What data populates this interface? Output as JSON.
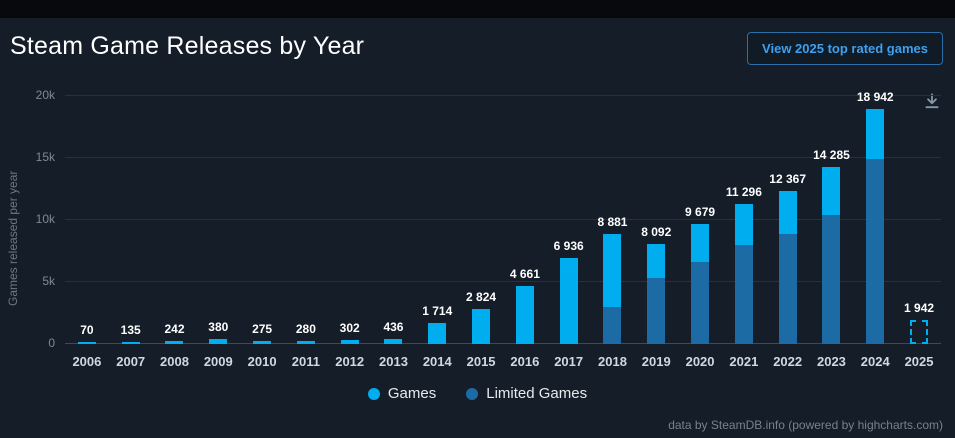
{
  "header": {
    "title": "Steam Game Releases by Year",
    "button_label": "View 2025 top rated games"
  },
  "chart_data": {
    "type": "bar",
    "stacked": true,
    "title": "Steam Game Releases by Year",
    "ylabel": "Games released per year",
    "ylim": [
      0,
      20000
    ],
    "yticks": [
      "0",
      "5k",
      "10k",
      "15k",
      "20k"
    ],
    "grid": true,
    "legend_position": "bottom",
    "categories": [
      "2006",
      "2007",
      "2008",
      "2009",
      "2010",
      "2011",
      "2012",
      "2013",
      "2014",
      "2015",
      "2016",
      "2017",
      "2018",
      "2019",
      "2020",
      "2021",
      "2022",
      "2023",
      "2024",
      "2025"
    ],
    "totals": [
      70,
      135,
      242,
      380,
      275,
      280,
      302,
      436,
      1714,
      2824,
      4661,
      6936,
      8881,
      8092,
      9679,
      11296,
      12367,
      14285,
      18942,
      1942
    ],
    "labels": [
      "70",
      "135",
      "242",
      "380",
      "275",
      "280",
      "302",
      "436",
      "1 714",
      "2 824",
      "4 661",
      "6 936",
      "8 881",
      "8 092",
      "9 679",
      "11 296",
      "12 367",
      "14 285",
      "18 942",
      "1 942"
    ],
    "series": [
      {
        "name": "Limited Games",
        "color": "#1c6ba5",
        "values": [
          0,
          0,
          0,
          0,
          0,
          0,
          0,
          0,
          0,
          0,
          0,
          0,
          2950,
          5300,
          6600,
          8000,
          8900,
          10400,
          14900,
          0
        ]
      },
      {
        "name": "Games",
        "color": "#00adee",
        "values": [
          70,
          135,
          242,
          380,
          275,
          280,
          302,
          436,
          1714,
          2824,
          4661,
          6936,
          5931,
          2792,
          3079,
          3296,
          3467,
          3885,
          4042,
          0
        ]
      }
    ],
    "projected": {
      "year": "2025",
      "total": 1942,
      "style": "dashed-outline"
    }
  },
  "legend": {
    "items": [
      {
        "label": "Games",
        "color": "#00adee"
      },
      {
        "label": "Limited Games",
        "color": "#1c6ba5"
      }
    ]
  },
  "icons": {
    "export": "download-icon"
  },
  "colors": {
    "background": "#141d28",
    "accent_blue": "#3da0f0",
    "games": "#00adee",
    "limited_games": "#1c6ba5"
  },
  "footer": {
    "credit": "data by SteamDB.info (powered by highcharts.com)"
  }
}
